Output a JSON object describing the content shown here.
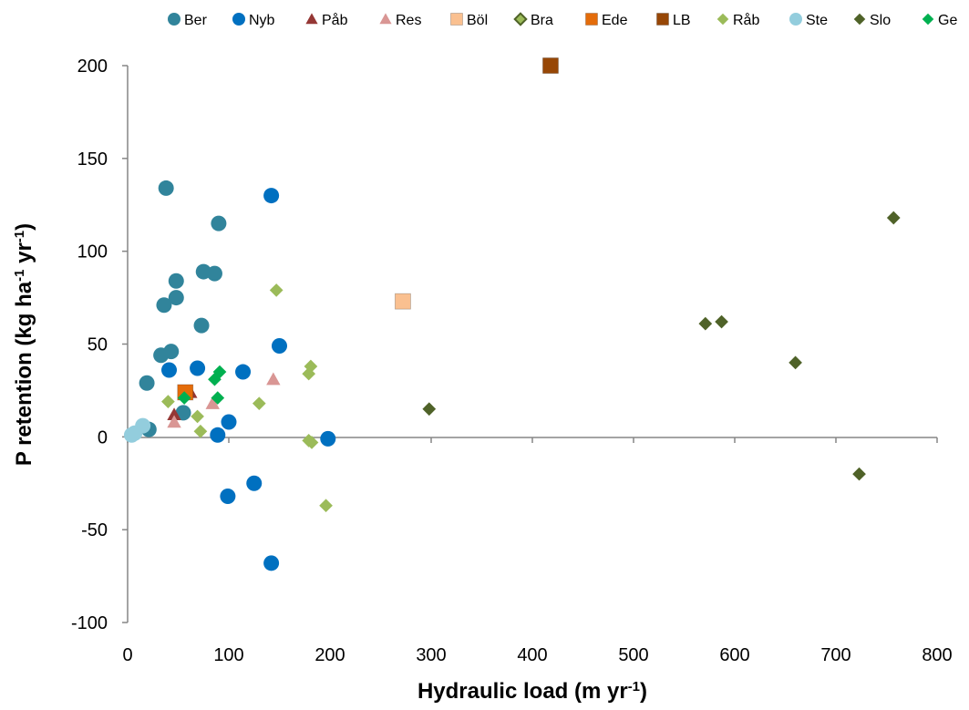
{
  "chart_data": {
    "type": "scatter",
    "xlabel": "Hydraulic load (m yr⁻¹)",
    "ylabel": "P retention (kg ha⁻¹ yr⁻¹)",
    "xlim": [
      0,
      800
    ],
    "ylim": [
      -100,
      200
    ],
    "x_ticks": [
      "0",
      "100",
      "200",
      "300",
      "400",
      "500",
      "600",
      "700",
      "800"
    ],
    "y_ticks": [
      "200",
      "150",
      "100",
      "50",
      "0",
      "-50",
      "-100"
    ],
    "grid": false,
    "legend_position": "top",
    "series": [
      {
        "name": "Ber",
        "marker": "circle",
        "color": "#31849b",
        "points": [
          [
            38,
            134
          ],
          [
            90,
            115
          ],
          [
            48,
            84
          ],
          [
            75,
            89
          ],
          [
            86,
            88
          ],
          [
            36,
            71
          ],
          [
            48,
            75
          ],
          [
            73,
            60
          ],
          [
            33,
            44
          ],
          [
            43,
            46
          ],
          [
            19,
            29
          ],
          [
            55,
            13
          ],
          [
            21,
            4
          ]
        ]
      },
      {
        "name": "Nyb",
        "marker": "circle",
        "color": "#0070c0",
        "points": [
          [
            142,
            130
          ],
          [
            150,
            49
          ],
          [
            41,
            36
          ],
          [
            69,
            37
          ],
          [
            114,
            35
          ],
          [
            100,
            8
          ],
          [
            89,
            1
          ],
          [
            198,
            -1
          ],
          [
            125,
            -25
          ],
          [
            99,
            -32
          ],
          [
            142,
            -68
          ]
        ]
      },
      {
        "name": "Påb",
        "marker": "triangle",
        "color": "#953735",
        "points": [
          [
            46,
            12
          ],
          [
            62,
            24
          ]
        ]
      },
      {
        "name": "Res",
        "marker": "triangle",
        "color": "#d99694",
        "points": [
          [
            144,
            31
          ],
          [
            84,
            18
          ],
          [
            46,
            8
          ]
        ]
      },
      {
        "name": "Böl",
        "marker": "square",
        "color": "#fac090",
        "points": [
          [
            272,
            73
          ]
        ]
      },
      {
        "name": "Bra",
        "marker": "diamond-outline",
        "color": "#4f6228",
        "points": []
      },
      {
        "name": "Ede",
        "marker": "square",
        "color": "#e46c0a",
        "points": [
          [
            57,
            24
          ]
        ]
      },
      {
        "name": "LB",
        "marker": "square",
        "color": "#974706",
        "points": [
          [
            418,
            200
          ]
        ]
      },
      {
        "name": "Råb",
        "marker": "diamond",
        "color": "#9bbb59",
        "points": [
          [
            147,
            79
          ],
          [
            181,
            38
          ],
          [
            179,
            34
          ],
          [
            40,
            19
          ],
          [
            130,
            18
          ],
          [
            69,
            11
          ],
          [
            72,
            3
          ],
          [
            179,
            -2
          ],
          [
            182,
            -3
          ],
          [
            196,
            -37
          ]
        ]
      },
      {
        "name": "Ste",
        "marker": "circle",
        "color": "#93cddd",
        "points": [
          [
            15,
            6
          ],
          [
            7,
            2
          ],
          [
            4,
            1
          ]
        ]
      },
      {
        "name": "Slo",
        "marker": "diamond",
        "color": "#4f6228",
        "points": [
          [
            757,
            118
          ],
          [
            571,
            61
          ],
          [
            587,
            62
          ],
          [
            660,
            40
          ],
          [
            298,
            15
          ],
          [
            723,
            -20
          ]
        ]
      },
      {
        "name": "Ge",
        "marker": "diamond",
        "color": "#00b050",
        "points": [
          [
            91,
            35
          ],
          [
            86,
            31
          ],
          [
            56,
            21
          ],
          [
            89,
            21
          ]
        ]
      }
    ]
  }
}
